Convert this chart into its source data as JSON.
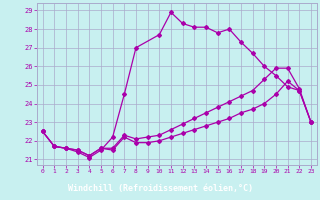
{
  "xlabel": "Windchill (Refroidissement éolien,°C)",
  "background_color": "#c8f0f0",
  "line_color": "#aa00aa",
  "grid_color": "#aaaacc",
  "xlabel_bg": "#7700aa",
  "xlabel_fg": "#ffffff",
  "xlim": [
    -0.5,
    23.5
  ],
  "ylim": [
    20.7,
    29.4
  ],
  "yticks": [
    21,
    22,
    23,
    24,
    25,
    26,
    27,
    28,
    29
  ],
  "xticks": [
    0,
    1,
    2,
    3,
    4,
    5,
    6,
    7,
    8,
    9,
    10,
    11,
    12,
    13,
    14,
    15,
    16,
    17,
    18,
    19,
    20,
    21,
    22,
    23
  ],
  "curve1_x": [
    0,
    1,
    2,
    3,
    4,
    5,
    6,
    7,
    8,
    10,
    11,
    12,
    13,
    14,
    15,
    16,
    17,
    18,
    19,
    20,
    21,
    22,
    23
  ],
  "curve1_y": [
    22.5,
    21.7,
    21.6,
    21.4,
    21.1,
    21.5,
    22.2,
    24.5,
    27.0,
    27.7,
    28.9,
    28.3,
    28.1,
    28.1,
    27.8,
    28.0,
    27.3,
    26.7,
    26.0,
    25.5,
    24.9,
    24.7,
    23.0
  ],
  "curve2_x": [
    0,
    1,
    2,
    3,
    4,
    5,
    6,
    7,
    8,
    9,
    10,
    11,
    12,
    13,
    14,
    15,
    16,
    17,
    18,
    19,
    20,
    21,
    22,
    23
  ],
  "curve2_y": [
    22.5,
    21.7,
    21.6,
    21.5,
    21.2,
    21.6,
    21.6,
    22.3,
    22.1,
    22.2,
    22.3,
    22.6,
    22.9,
    23.2,
    23.5,
    23.8,
    24.1,
    24.4,
    24.7,
    25.3,
    25.9,
    25.9,
    24.8,
    23.0
  ],
  "curve3_x": [
    0,
    1,
    2,
    3,
    4,
    5,
    6,
    7,
    8,
    9,
    10,
    11,
    12,
    13,
    14,
    15,
    16,
    17,
    18,
    19,
    20,
    21,
    22,
    23
  ],
  "curve3_y": [
    22.5,
    21.7,
    21.6,
    21.5,
    21.2,
    21.6,
    21.5,
    22.2,
    21.9,
    21.9,
    22.0,
    22.2,
    22.4,
    22.6,
    22.8,
    23.0,
    23.2,
    23.5,
    23.7,
    24.0,
    24.5,
    25.2,
    24.7,
    23.0
  ],
  "marker": "D",
  "markersize": 2.0,
  "linewidth": 0.9
}
